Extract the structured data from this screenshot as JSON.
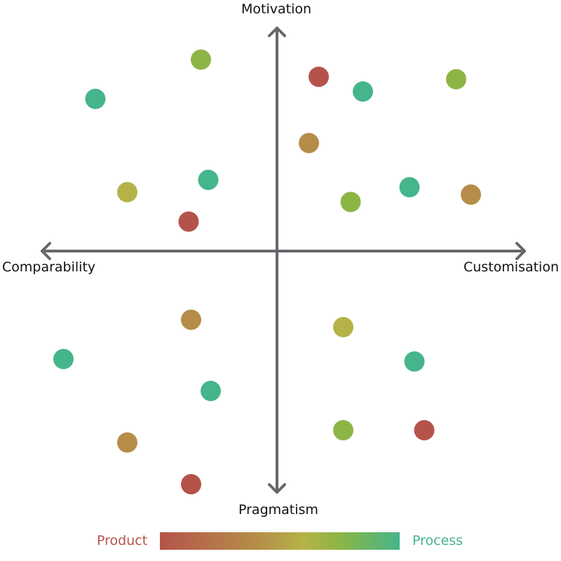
{
  "chart_data": {
    "type": "scatter",
    "axes": {
      "top": "Motivation",
      "bottom": "Pragmatism",
      "left": "Comparability",
      "right": "Customisation"
    },
    "xlim": [
      -10,
      10
    ],
    "ylim": [
      -10,
      10
    ],
    "grid": false,
    "legend": {
      "placement": "bottom",
      "type": "gradient",
      "low_label": "Product",
      "high_label": "Process",
      "colors": [
        "#b5534a",
        "#b58d48",
        "#b5b347",
        "#8db545",
        "#45b58b"
      ],
      "stops": [
        0,
        0.4,
        0.6,
        0.75,
        1
      ]
    },
    "axis_color": "#65686b",
    "points": [
      {
        "x": -3.1,
        "y": 7.8,
        "value": 0.75
      },
      {
        "x": -7.4,
        "y": 6.2,
        "value": 1
      },
      {
        "x": 1.7,
        "y": 7.1,
        "value": 0
      },
      {
        "x": 3.5,
        "y": 6.5,
        "value": 1
      },
      {
        "x": 7.3,
        "y": 7.0,
        "value": 0.75
      },
      {
        "x": 1.3,
        "y": 4.4,
        "value": 0.4
      },
      {
        "x": -2.8,
        "y": 2.9,
        "value": 1
      },
      {
        "x": -6.1,
        "y": 2.4,
        "value": 0.6
      },
      {
        "x": -3.6,
        "y": 1.2,
        "value": 0
      },
      {
        "x": 3.0,
        "y": 2.0,
        "value": 0.75
      },
      {
        "x": 5.4,
        "y": 2.6,
        "value": 1
      },
      {
        "x": 7.9,
        "y": 2.3,
        "value": 0.4
      },
      {
        "x": -3.5,
        "y": -2.8,
        "value": 0.4
      },
      {
        "x": 2.7,
        "y": -3.1,
        "value": 0.6
      },
      {
        "x": -8.7,
        "y": -4.4,
        "value": 1
      },
      {
        "x": 5.6,
        "y": -4.5,
        "value": 1
      },
      {
        "x": -2.7,
        "y": -5.7,
        "value": 1
      },
      {
        "x": -6.1,
        "y": -7.8,
        "value": 0.4
      },
      {
        "x": 2.7,
        "y": -7.3,
        "value": 0.75
      },
      {
        "x": 6.0,
        "y": -7.3,
        "value": 0
      },
      {
        "x": -3.5,
        "y": -9.5,
        "value": 0
      }
    ]
  }
}
